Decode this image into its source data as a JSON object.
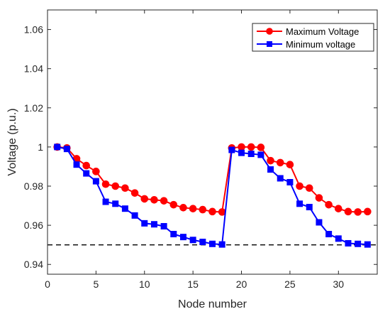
{
  "chart_data": {
    "type": "line",
    "xlabel": "Node number",
    "ylabel": "Voltage (p.u.)",
    "xlim": [
      0,
      34
    ],
    "ylim": [
      0.935,
      1.07
    ],
    "xticks": [
      0,
      5,
      10,
      15,
      20,
      25,
      30
    ],
    "yticks": [
      0.94,
      0.96,
      0.98,
      1.0,
      1.02,
      1.04,
      1.06
    ],
    "ytick_labels": [
      "0.94",
      "0.96",
      "0.98",
      "1",
      "1.02",
      "1.04",
      "1.06"
    ],
    "grid": false,
    "legend_position": "top-right",
    "x": [
      1,
      2,
      3,
      4,
      5,
      6,
      7,
      8,
      9,
      10,
      11,
      12,
      13,
      14,
      15,
      16,
      17,
      18,
      19,
      20,
      21,
      22,
      23,
      24,
      25,
      26,
      27,
      28,
      29,
      30,
      31,
      32,
      33
    ],
    "series": [
      {
        "name": "Maximum Voltage",
        "color": "#ff0000",
        "marker": "circle",
        "values": [
          1.0,
          0.9995,
          0.994,
          0.9905,
          0.9875,
          0.981,
          0.98,
          0.979,
          0.9765,
          0.9735,
          0.973,
          0.9725,
          0.9705,
          0.969,
          0.9685,
          0.968,
          0.967,
          0.9668,
          0.9995,
          1.0,
          1.0,
          0.9998,
          0.993,
          0.992,
          0.991,
          0.98,
          0.979,
          0.974,
          0.9705,
          0.9685,
          0.967,
          0.9668,
          0.967
        ]
      },
      {
        "name": "Minimum voltage",
        "color": "#0000ff",
        "marker": "square",
        "values": [
          1.0,
          0.999,
          0.991,
          0.9865,
          0.9825,
          0.972,
          0.971,
          0.9685,
          0.965,
          0.961,
          0.9605,
          0.9595,
          0.9555,
          0.954,
          0.9525,
          0.9515,
          0.9505,
          0.9502,
          0.9985,
          0.997,
          0.9965,
          0.996,
          0.9885,
          0.984,
          0.982,
          0.971,
          0.9693,
          0.9615,
          0.9555,
          0.9532,
          0.9508,
          0.9505,
          0.9502
        ]
      }
    ],
    "reference_line": {
      "y": 0.95,
      "style": "dashed",
      "color": "#000000"
    }
  }
}
